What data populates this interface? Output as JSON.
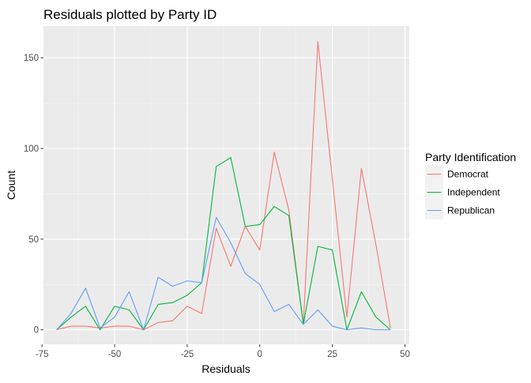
{
  "chart_data": {
    "type": "line",
    "title": "Residuals plotted by Party ID",
    "xlabel": "Residuals",
    "ylabel": "Count",
    "xlim": [
      -74.5,
      51.5
    ],
    "ylim": [
      -8,
      167.5
    ],
    "x_ticks": [
      -75,
      -50,
      -25,
      0,
      25,
      50
    ],
    "x_tick_labels": [
      "-75",
      "-50",
      "-25",
      "0",
      "25",
      "50"
    ],
    "y_ticks": [
      0,
      50,
      100,
      150
    ],
    "y_tick_labels": [
      "0",
      "50",
      "100",
      "150"
    ],
    "grid": true,
    "legend": {
      "title": "Party Identification",
      "position": "right"
    },
    "series": [
      {
        "name": "Democrat",
        "color": "#F8766D",
        "x": [
          -70,
          -65,
          -60,
          -55,
          -50,
          -45,
          -40,
          -35,
          -30,
          -25,
          -20,
          -15,
          -10,
          -5,
          0,
          5,
          10,
          15,
          20,
          25,
          30,
          35,
          40,
          45
        ],
        "values": [
          0,
          2,
          2,
          1,
          2,
          2,
          0,
          4,
          5,
          13,
          9,
          56,
          35,
          57,
          44,
          98,
          66,
          3,
          159,
          83,
          7,
          89,
          47,
          1
        ]
      },
      {
        "name": "Independent",
        "color": "#00BA38",
        "x": [
          -70,
          -65,
          -60,
          -55,
          -50,
          -45,
          -40,
          -35,
          -30,
          -25,
          -20,
          -15,
          -10,
          -5,
          0,
          5,
          10,
          15,
          20,
          25,
          30,
          35,
          40,
          45
        ],
        "values": [
          0,
          7,
          13,
          0,
          13,
          11,
          0,
          14,
          15,
          19,
          26,
          90,
          95,
          57,
          58,
          68,
          63,
          3,
          46,
          44,
          0,
          21,
          7,
          0
        ]
      },
      {
        "name": "Republican",
        "color": "#619CFF",
        "x": [
          -70,
          -65,
          -60,
          -55,
          -50,
          -45,
          -40,
          -35,
          -30,
          -25,
          -20,
          -15,
          -10,
          -5,
          0,
          5,
          10,
          15,
          20,
          25,
          30,
          35,
          40,
          45
        ],
        "values": [
          0,
          9,
          23,
          1,
          7,
          21,
          0,
          29,
          24,
          27,
          26,
          62,
          48,
          31,
          25,
          10,
          14,
          3,
          11,
          2,
          0,
          1,
          0,
          0
        ]
      }
    ]
  }
}
